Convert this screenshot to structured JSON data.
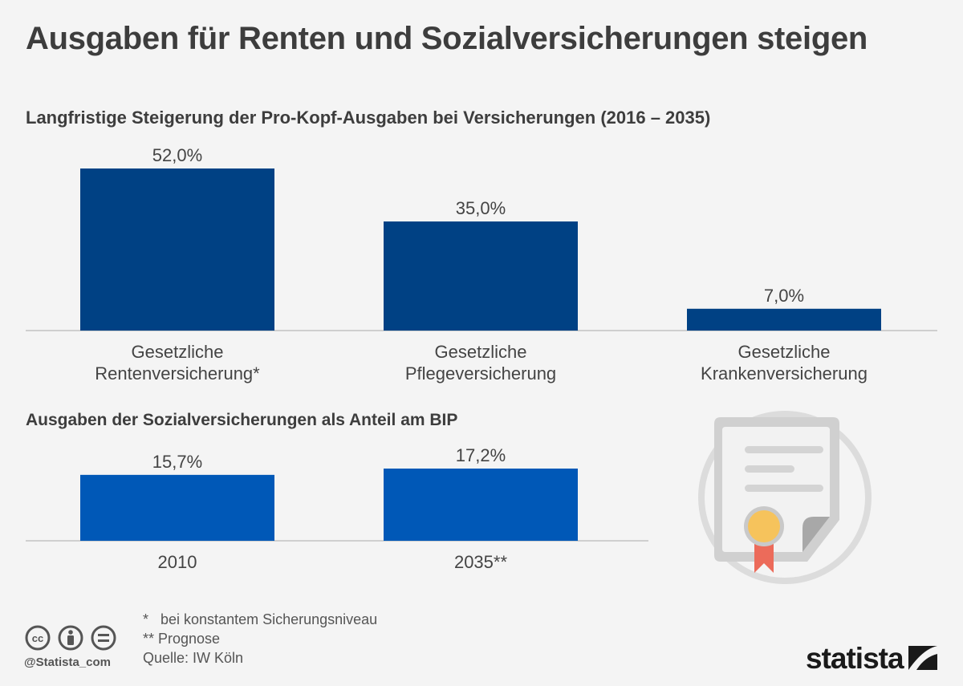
{
  "title": "Ausgaben für Renten und Sozialversicherungen steigen",
  "chart_data": [
    {
      "type": "bar",
      "title": "Langfristige Steigerung der Pro-Kopf-Ausgaben bei Versicherungen (2016 – 2035)",
      "categories": [
        [
          "Gesetzliche",
          "Rentenversicherung*"
        ],
        [
          "Gesetzliche",
          "Pflegeversicherung"
        ],
        [
          "Gesetzliche",
          "Krankenversicherung"
        ]
      ],
      "values": [
        52.0,
        35.0,
        7.0
      ],
      "value_labels": [
        "52,0%",
        "35,0%",
        "7,0%"
      ],
      "unit": "%",
      "ylim": [
        0,
        52
      ],
      "color": "#004184",
      "grid": false
    },
    {
      "type": "bar",
      "title": "Ausgaben der Sozialversicherungen als Anteil am BIP",
      "categories": [
        "2010",
        "2035**"
      ],
      "values": [
        15.7,
        17.2
      ],
      "value_labels": [
        "15,7%",
        "17,2%"
      ],
      "unit": "%",
      "ylim": [
        0,
        17.2
      ],
      "color": "#0058b7",
      "grid": false
    }
  ],
  "footnotes": [
    "*   bei konstantem Sicherungsniveau",
    "** Prognose",
    "Quelle: IW Köln"
  ],
  "license_handle": "@Statista_com",
  "brand": "statista",
  "icons": [
    "cc-icon",
    "by-icon",
    "nd-icon",
    "certificate-icon",
    "statista-logo-icon"
  ]
}
